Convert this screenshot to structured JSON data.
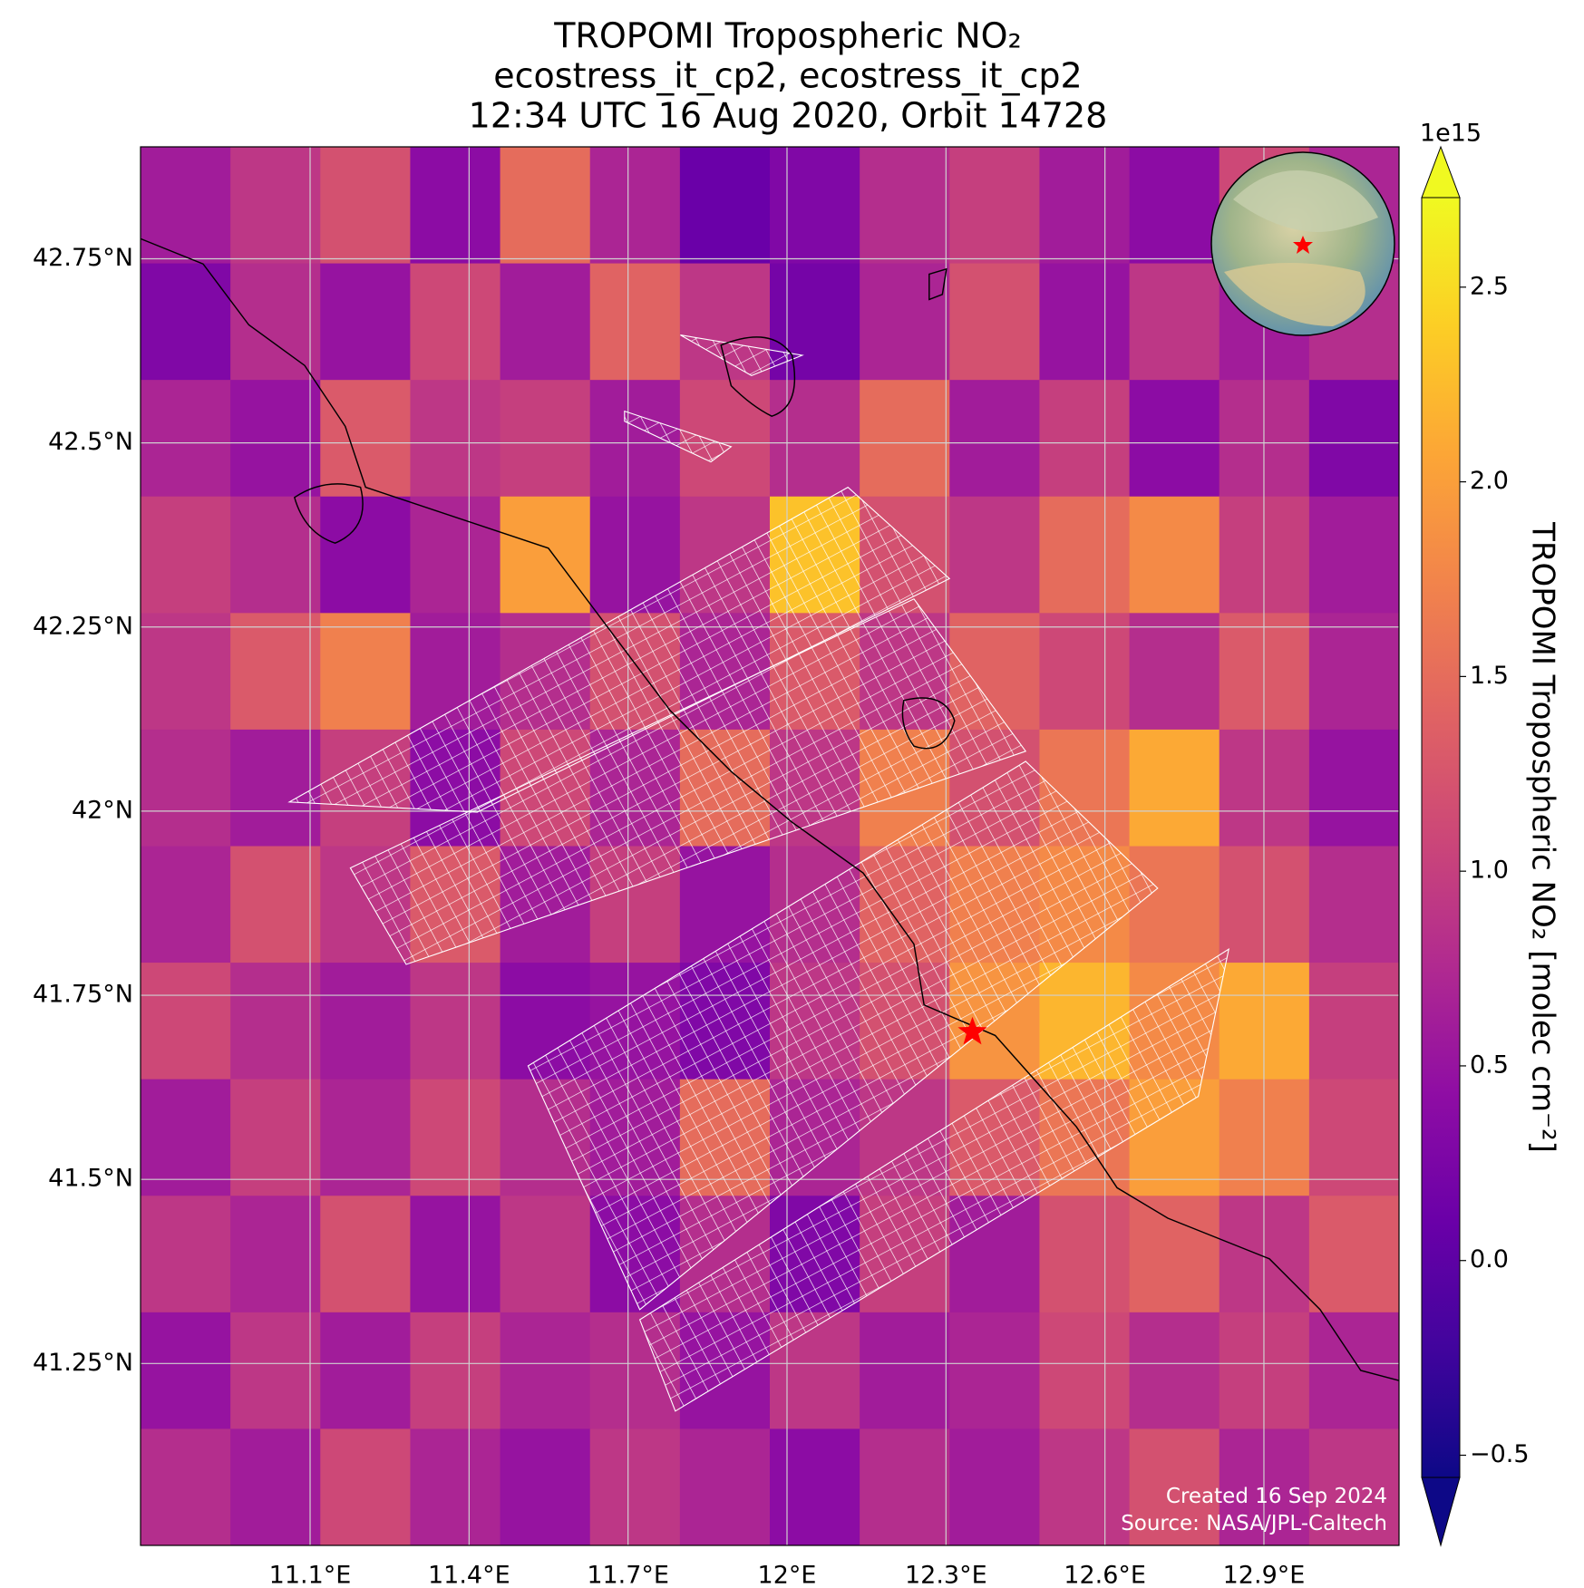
{
  "chart_data": {
    "type": "heatmap",
    "title": [
      "TROPOMI Tropospheric NO₂",
      "ecostress_it_cp2, ecostress_it_cp2",
      "12:34 UTC 16 Aug 2020, Orbit 14728"
    ],
    "colormap": "plasma",
    "xlim": [
      10.78,
      13.155
    ],
    "ylim": [
      41.003,
      42.902
    ],
    "xticks": [
      {
        "value": 11.1,
        "label": "11.1°E"
      },
      {
        "value": 11.4,
        "label": "11.4°E"
      },
      {
        "value": 11.7,
        "label": "11.7°E"
      },
      {
        "value": 12.0,
        "label": "12°E"
      },
      {
        "value": 12.3,
        "label": "12.3°E"
      },
      {
        "value": 12.6,
        "label": "12.6°E"
      },
      {
        "value": 12.9,
        "label": "12.9°E"
      }
    ],
    "yticks": [
      {
        "value": 41.25,
        "label": "41.25°N"
      },
      {
        "value": 41.5,
        "label": "41.5°N"
      },
      {
        "value": 41.75,
        "label": "41.75°N"
      },
      {
        "value": 42.0,
        "label": "42°N"
      },
      {
        "value": 42.25,
        "label": "42.25°N"
      },
      {
        "value": 42.5,
        "label": "42.5°N"
      },
      {
        "value": 42.75,
        "label": "42.75°N"
      }
    ],
    "grid": true,
    "values": [
      [
        0.6,
        0.9,
        1.2,
        0.4,
        1.5,
        0.7,
        0.1,
        0.3,
        0.8,
        1.0,
        0.6,
        0.4,
        1.1,
        0.7
      ],
      [
        0.3,
        0.8,
        0.5,
        1.1,
        0.6,
        1.4,
        0.9,
        0.2,
        0.7,
        1.2,
        0.5,
        0.9,
        0.6,
        0.8
      ],
      [
        0.7,
        0.5,
        1.3,
        0.9,
        1.0,
        0.6,
        1.1,
        0.8,
        1.5,
        0.6,
        1.0,
        0.4,
        0.8,
        0.3
      ],
      [
        1.0,
        0.8,
        0.4,
        0.7,
        2.0,
        0.5,
        0.9,
        2.3,
        1.2,
        0.9,
        1.5,
        1.8,
        1.0,
        0.6
      ],
      [
        0.9,
        1.3,
        1.7,
        0.6,
        0.8,
        1.2,
        0.7,
        1.3,
        0.9,
        1.4,
        1.1,
        0.8,
        1.3,
        0.7
      ],
      [
        0.8,
        0.6,
        1.0,
        0.4,
        1.1,
        0.7,
        1.5,
        0.9,
        1.7,
        1.2,
        1.6,
        2.1,
        0.9,
        0.5
      ],
      [
        0.7,
        1.2,
        0.9,
        1.3,
        0.6,
        1.0,
        0.5,
        0.8,
        1.4,
        1.7,
        1.8,
        1.6,
        1.2,
        0.8
      ],
      [
        1.1,
        0.8,
        0.6,
        0.9,
        0.4,
        0.5,
        0.3,
        0.9,
        1.2,
        1.9,
        2.2,
        1.8,
        2.1,
        1.0
      ],
      [
        0.6,
        1.0,
        0.7,
        1.1,
        0.8,
        0.6,
        1.5,
        0.7,
        0.9,
        1.3,
        1.6,
        2.0,
        1.7,
        1.1
      ],
      [
        0.9,
        0.7,
        1.2,
        0.5,
        0.9,
        0.4,
        0.8,
        0.3,
        1.0,
        0.6,
        1.2,
        1.4,
        0.9,
        1.3
      ],
      [
        0.5,
        0.9,
        0.6,
        1.0,
        0.7,
        0.8,
        0.5,
        0.9,
        0.6,
        0.7,
        1.1,
        0.8,
        1.0,
        0.7
      ],
      [
        0.8,
        0.6,
        1.1,
        0.7,
        0.5,
        0.9,
        0.7,
        0.4,
        0.8,
        0.6,
        0.9,
        1.2,
        0.7,
        0.9
      ]
    ],
    "clim": [
      -0.557,
      2.73
    ],
    "cticks": [
      {
        "value": -0.5,
        "label": "−0.5"
      },
      {
        "value": 0,
        "label": "0.0"
      },
      0.5,
      {
        "value": 1,
        "label": "1.0"
      },
      1.5,
      {
        "value": 2,
        "label": "2.0"
      },
      2.5
    ],
    "colorbar_offset": "1e15",
    "colorbar_label": "TROPOMI Tropospheric NO₂ [molec cm⁻²]",
    "marker": {
      "lon": 12.35,
      "lat": 41.7,
      "color": "#ff0000"
    },
    "credits": [
      "Created 16 Sep 2024",
      "Source: NASA/JPL-Caltech"
    ]
  }
}
